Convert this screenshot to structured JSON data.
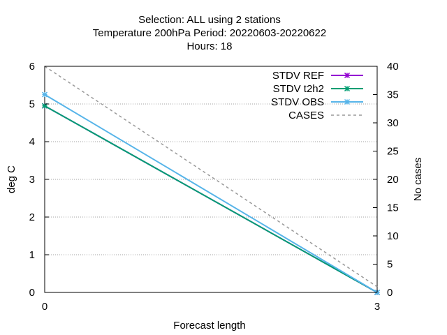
{
  "chart_data": {
    "type": "line",
    "title_lines": [
      "Selection: ALL using      2 stations",
      "Temperature 200hPa   Period: 20220603-20220622",
      "Hours:  18"
    ],
    "xlabel": "Forecast length",
    "ylabel": "deg C",
    "y2label": "No cases",
    "x": [
      0,
      3
    ],
    "xlim": [
      0,
      3
    ],
    "ylim": [
      0,
      6
    ],
    "y2lim": [
      0,
      40
    ],
    "x_ticks": [
      "0",
      "3"
    ],
    "y_ticks": [
      "0",
      "1",
      "2",
      "3",
      "4",
      "5",
      "6"
    ],
    "y2_ticks": [
      "0",
      "5",
      "10",
      "15",
      "20",
      "25",
      "30",
      "35",
      "40"
    ],
    "grid": true,
    "legend_position": "top-right",
    "series": [
      {
        "name": "STDV REF",
        "values": [
          4.95,
          0.0
        ],
        "axis": "y",
        "color": "#9400d3",
        "style": "solid",
        "marker": "star"
      },
      {
        "name": "STDV t2h2",
        "values": [
          4.95,
          0.0
        ],
        "axis": "y",
        "color": "#009e73",
        "style": "solid",
        "marker": "star"
      },
      {
        "name": "STDV OBS",
        "values": [
          5.25,
          0.0
        ],
        "axis": "y",
        "color": "#56b4e9",
        "style": "solid",
        "marker": "star"
      },
      {
        "name": "CASES",
        "values": [
          40,
          1
        ],
        "axis": "y2",
        "color": "#999999",
        "style": "dashed",
        "marker": "none"
      }
    ]
  }
}
